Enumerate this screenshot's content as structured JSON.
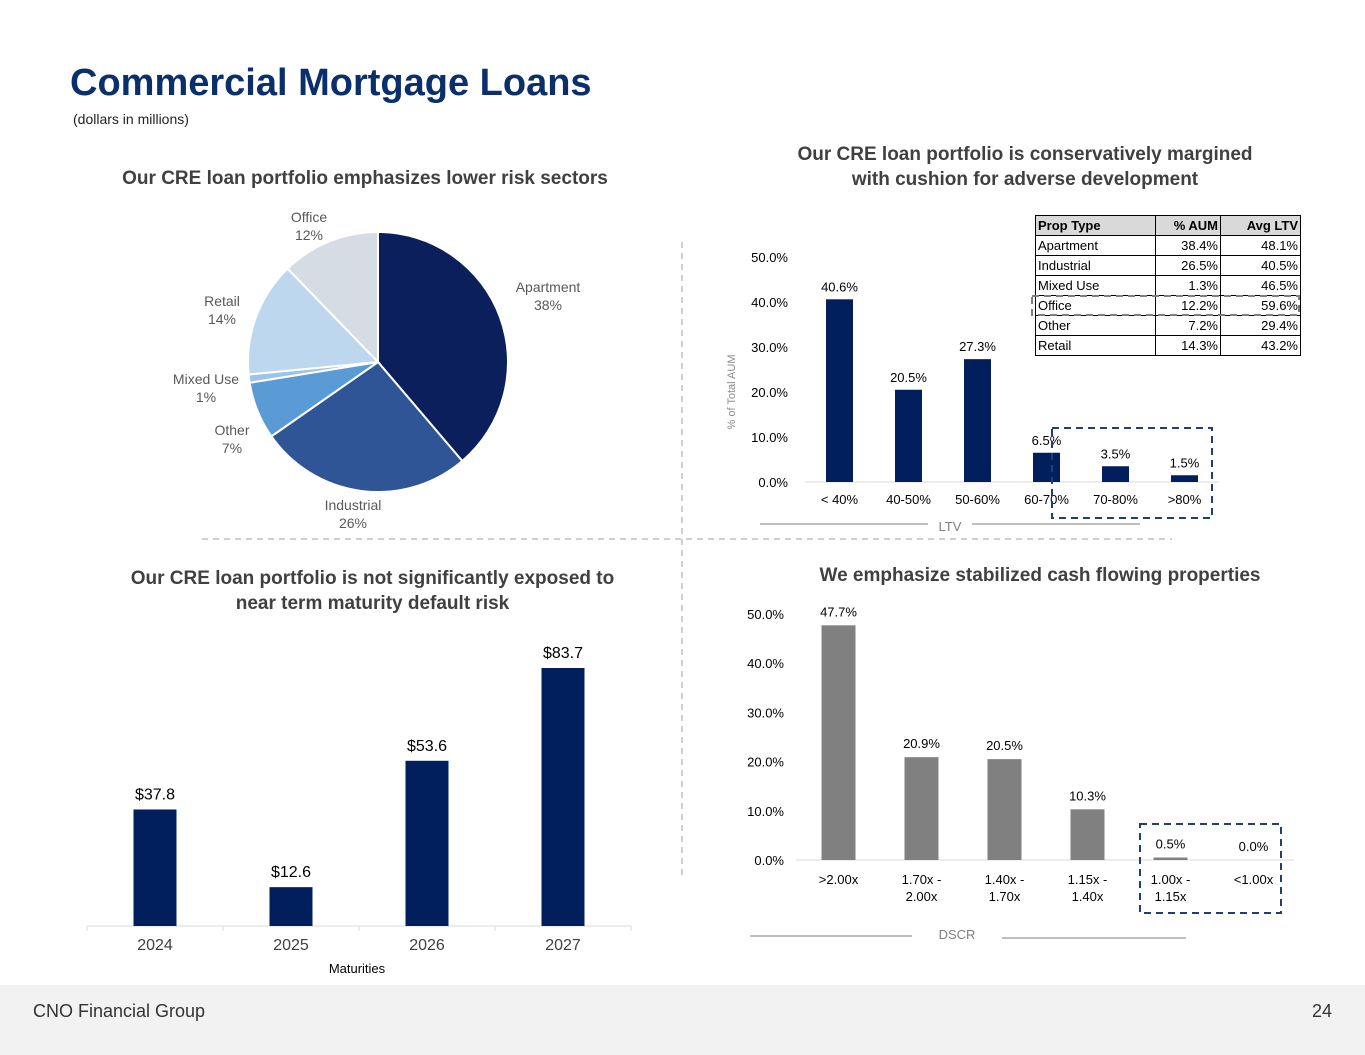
{
  "page": {
    "title": "Commercial Mortgage Loans",
    "subtitle": "(dollars in millions)",
    "footer_company": "CNO Financial Group",
    "page_number": "24"
  },
  "sections": {
    "pie_title": "Our CRE loan portfolio emphasizes lower risk sectors",
    "ltv_title_line1": "Our CRE loan portfolio is conservatively margined",
    "ltv_title_line2": "with cushion for adverse development",
    "maturity_title_line1": "Our CRE loan portfolio is not significantly exposed to",
    "maturity_title_line2": "near term maturity default risk",
    "dscr_title": "We emphasize stabilized cash flowing properties"
  },
  "ltv_table": {
    "headers": [
      "Prop Type",
      "% AUM",
      "Avg LTV"
    ],
    "rows": [
      [
        "Apartment",
        "38.4%",
        "48.1%"
      ],
      [
        "Industrial",
        "26.5%",
        "40.5%"
      ],
      [
        "Mixed Use",
        "1.3%",
        "46.5%"
      ],
      [
        "Office",
        "12.2%",
        "59.6%"
      ],
      [
        "Other",
        "7.2%",
        "29.4%"
      ],
      [
        "Retail",
        "14.3%",
        "43.2%"
      ]
    ]
  },
  "colors": {
    "navy": "#001f5c",
    "title_blue": "#0b2f6b",
    "gray_bar": "#808080",
    "dash_highlight": "#1f3f7a"
  },
  "chart_data": [
    {
      "type": "pie",
      "title": "Our CRE loan portfolio emphasizes lower risk sectors",
      "slices": [
        {
          "label": "Apartment",
          "pct_label": "38%",
          "value": 38,
          "color": "#0b1f5c"
        },
        {
          "label": "Industrial",
          "pct_label": "26%",
          "value": 26,
          "color": "#2f5597"
        },
        {
          "label": "Other",
          "pct_label": "7%",
          "value": 7,
          "color": "#5b9bd5"
        },
        {
          "label": "Mixed Use",
          "pct_label": "1%",
          "value": 1,
          "color": "#9dc3e6"
        },
        {
          "label": "Retail",
          "pct_label": "14%",
          "value": 14,
          "color": "#bdd7ee"
        },
        {
          "label": "Office",
          "pct_label": "12%",
          "value": 12,
          "color": "#d6dce4"
        }
      ]
    },
    {
      "type": "bar",
      "title": "Our CRE loan portfolio is conservatively margined with cushion for adverse development",
      "categories": [
        "< 40%",
        "40-50%",
        "50-60%",
        "60-70%",
        "70-80%",
        ">80%"
      ],
      "values": [
        40.6,
        20.5,
        27.3,
        6.5,
        3.5,
        1.5
      ],
      "value_labels": [
        "40.6%",
        "20.5%",
        "27.3%",
        "6.5%",
        "3.5%",
        "1.5%"
      ],
      "ylabel": "% of Total AUM",
      "xlabel": "LTV",
      "ylim": [
        0,
        50
      ],
      "yticks": [
        "0.0%",
        "10.0%",
        "20.0%",
        "30.0%",
        "40.0%",
        "50.0%"
      ],
      "color": "#001f5c",
      "highlighted_categories": [
        "70-80%",
        ">80%"
      ]
    },
    {
      "type": "bar",
      "title": "Our CRE loan portfolio is not significantly exposed to near term maturity default risk",
      "categories": [
        "2024",
        "2025",
        "2026",
        "2027"
      ],
      "values": [
        37.8,
        12.6,
        53.6,
        83.7
      ],
      "value_labels": [
        "$37.8",
        "$12.6",
        "$53.6",
        "$83.7"
      ],
      "xlabel": "Maturities",
      "color": "#001f5c"
    },
    {
      "type": "bar",
      "title": "We emphasize stabilized cash flowing properties",
      "categories": [
        ">2.00x",
        "1.70x -|2.00x",
        "1.40x -|1.70x",
        "1.15x -|1.40x",
        "1.00x -|1.15x",
        "<1.00x"
      ],
      "values": [
        47.7,
        20.9,
        20.5,
        10.3,
        0.5,
        0.0
      ],
      "value_labels": [
        "47.7%",
        "20.9%",
        "20.5%",
        "10.3%",
        "0.5%",
        "0.0%"
      ],
      "xlabel": "DSCR",
      "ylim": [
        0,
        50
      ],
      "yticks": [
        "0.0%",
        "10.0%",
        "20.0%",
        "30.0%",
        "40.0%",
        "50.0%"
      ],
      "color": "#808080",
      "highlighted_categories": [
        "1.00x -|1.15x",
        "<1.00x"
      ]
    }
  ]
}
